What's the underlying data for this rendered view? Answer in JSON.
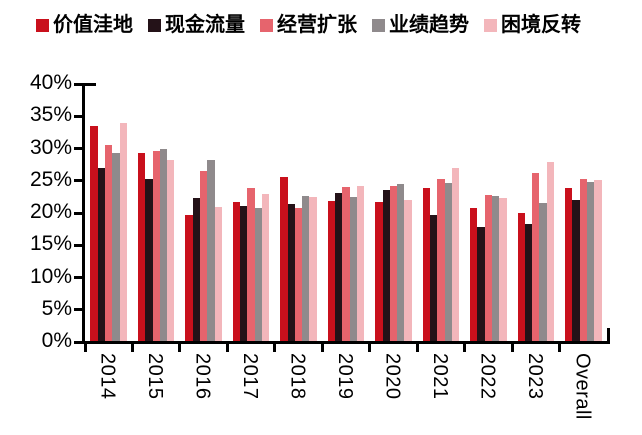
{
  "chart_data": {
    "type": "bar",
    "title": "",
    "xlabel": "",
    "ylabel": "",
    "categories": [
      "2014",
      "2015",
      "2016",
      "2017",
      "2018",
      "2019",
      "2020",
      "2021",
      "2022",
      "2023",
      "Overall"
    ],
    "series": [
      {
        "name": "价值洼地",
        "color": "#C9101C",
        "values": [
          33.4,
          29.2,
          19.5,
          21.5,
          25.5,
          21.7,
          21.5,
          23.8,
          20.6,
          19.9,
          23.8
        ]
      },
      {
        "name": "现金流量",
        "color": "#241218",
        "values": [
          26.8,
          25.1,
          22.2,
          21.0,
          21.3,
          22.9,
          23.4,
          19.6,
          17.6,
          18.2,
          21.8
        ]
      },
      {
        "name": "经营扩张",
        "color": "#E6646D",
        "values": [
          30.4,
          29.4,
          26.3,
          23.8,
          20.7,
          23.9,
          24.1,
          25.1,
          22.7,
          26.1,
          25.1
        ]
      },
      {
        "name": "业绩趋势",
        "color": "#8F8A8C",
        "values": [
          29.2,
          29.7,
          28.1,
          20.6,
          22.5,
          22.4,
          24.3,
          24.5,
          22.5,
          21.4,
          24.7
        ]
      },
      {
        "name": "困境反转",
        "color": "#F3B6BB",
        "values": [
          33.8,
          28.1,
          20.8,
          22.8,
          22.4,
          24.0,
          21.8,
          26.9,
          22.1,
          27.8,
          24.9
        ]
      }
    ],
    "ylim": [
      0,
      40
    ],
    "ytick_step": 5,
    "ytick_labels": [
      "0%",
      "5%",
      "10%",
      "15%",
      "20%",
      "25%",
      "30%",
      "35%",
      "40%"
    ],
    "value_unit": "%",
    "grid": false,
    "legend_position": "top",
    "bar_orientation": "vertical",
    "x_label_rotation": 90
  },
  "colors": {
    "axis": "#000000",
    "text": "#000000",
    "background": "#ffffff"
  }
}
